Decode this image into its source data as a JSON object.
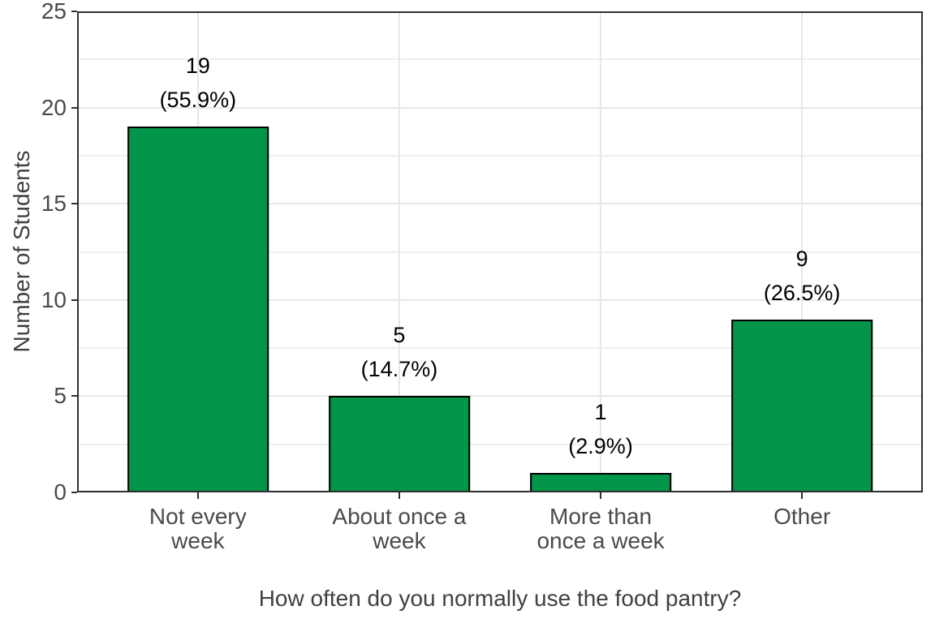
{
  "chart_data": {
    "type": "bar",
    "title": "",
    "xlabel": "How often do you normally use the food pantry?",
    "ylabel": "Number of Students",
    "categories": [
      [
        "Not every",
        "week"
      ],
      [
        "About once a",
        "week"
      ],
      [
        "More than",
        "once a week"
      ],
      [
        "Other"
      ]
    ],
    "values": [
      19,
      5,
      1,
      9
    ],
    "count_labels": [
      "19",
      "5",
      "1",
      "9"
    ],
    "percent_labels": [
      "(55.9%)",
      "(14.7%)",
      "(2.9%)",
      "(26.5%)"
    ],
    "ylim": [
      0,
      25
    ],
    "yticks": [
      0,
      5,
      10,
      15,
      20,
      25
    ],
    "ytick_labels": [
      "0",
      "5",
      "10",
      "15",
      "20",
      "25"
    ],
    "minor_yticks": [
      2.5,
      7.5,
      12.5,
      17.5,
      22.5
    ],
    "grid": true,
    "legend_position": "none",
    "bar_color": "#009549",
    "bar_border_color": "#000000",
    "panel_border_color": "#2f2f2f",
    "major_grid_color": "#e7e7e7",
    "minor_grid_color": "#efefef",
    "axis_text_color": "#4a4a4a",
    "axis_title_color": "#404040"
  }
}
